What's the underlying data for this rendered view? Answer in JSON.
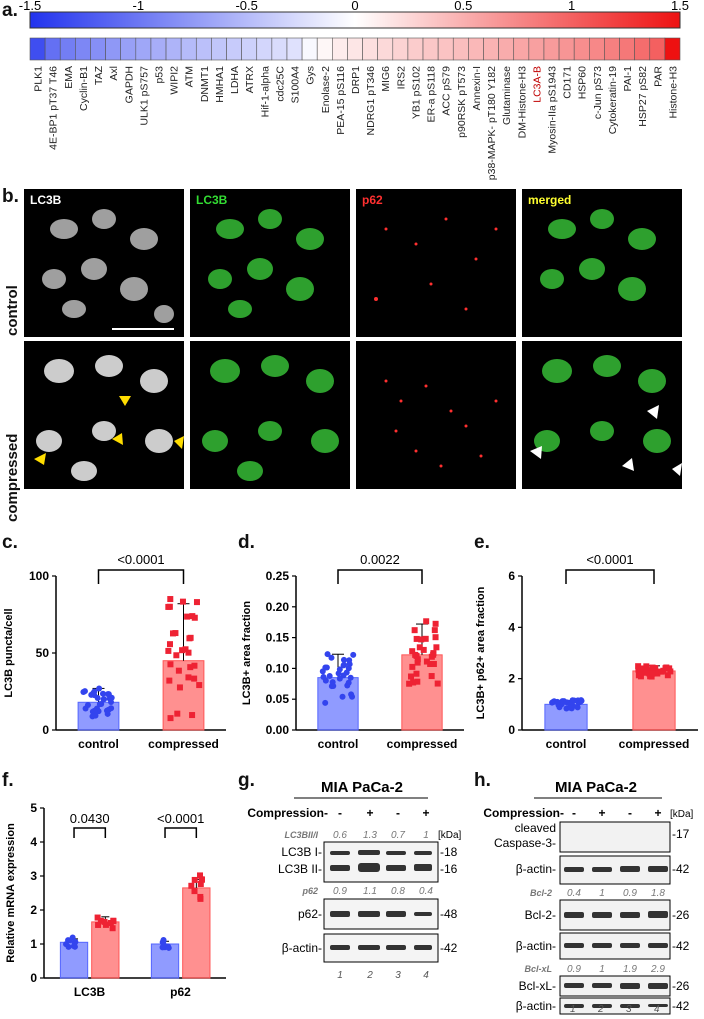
{
  "panels": {
    "a": "a.",
    "b": "b.",
    "c": "c.",
    "d": "d.",
    "e": "e.",
    "f": "f.",
    "g": "g.",
    "h": "h."
  },
  "heatmap": {
    "scale_ticks": [
      "-1.5",
      "-1",
      "-0.5",
      "0",
      "0.5",
      "1",
      "1.5"
    ],
    "scale_values": [
      -1.5,
      -1,
      -0.5,
      0,
      0.5,
      1,
      1.5
    ],
    "range": [
      -1.5,
      1.5
    ],
    "low_color": "#2233ee",
    "high_color": "#ee1111",
    "highlight_color": "#c00000",
    "proteins": [
      "PLK1",
      "4E-BP1 pT37 T46",
      "EMA",
      "Cyclin-B1",
      "TAZ",
      "Axl",
      "GAPDH",
      "ULK1 pS757",
      "p53",
      "WIPI2",
      "ATM",
      "DNMT1",
      "HMHA1",
      "LDHA",
      "ATRX",
      "Hif-1-alpha",
      "cdc25C",
      "S100A4",
      "Gys",
      "Enolase-2",
      "PEA-15 pS116",
      "DRP1",
      "NDRG1 pT346",
      "MIG6",
      "IRS2",
      "YB1 pS102",
      "ER-a pS118",
      "ACC pS79",
      "p90RSK pT573",
      "Annexin-I",
      "p38-MAPK- pT180 Y182",
      "Glutaminase",
      "DM-Histone-H3",
      "LC3A-B",
      "Myosin-IIa pS1943",
      "CD171",
      "HSP60",
      "c-Jun pS73",
      "Cytokeratin-19",
      "PAI-1",
      "HSP27 pS82",
      "PAR",
      "Histone-H3"
    ],
    "values": [
      -1.3,
      -1.05,
      -0.95,
      -0.88,
      -0.82,
      -0.76,
      -0.7,
      -0.65,
      -0.6,
      -0.55,
      -0.5,
      -0.46,
      -0.42,
      -0.38,
      -0.34,
      -0.3,
      -0.26,
      -0.22,
      -0.05,
      0.05,
      0.12,
      0.16,
      0.2,
      0.24,
      0.28,
      0.32,
      0.35,
      0.38,
      0.41,
      0.45,
      0.48,
      0.52,
      0.56,
      0.6,
      0.63,
      0.67,
      0.71,
      0.75,
      0.8,
      0.85,
      0.92,
      1.0,
      1.5
    ],
    "highlighted": [
      "LC3A-B"
    ]
  },
  "microscopy": {
    "col_labels": [
      "LC3B",
      "LC3B",
      "p62",
      "merged"
    ],
    "col_label_colors": [
      "#ffffff",
      "#33dd33",
      "#ff3030",
      "#ffff30"
    ],
    "row_labels": [
      "control",
      "compressed"
    ]
  },
  "chart_data": [
    {
      "type": "bar",
      "panel": "c",
      "categories": [
        "control",
        "compressed"
      ],
      "values": [
        18,
        45
      ],
      "errors": [
        9,
        37
      ],
      "ylabel": "LC3B puncta/cell",
      "ylim": [
        0,
        100
      ],
      "yticks": [
        "0",
        "50",
        "100"
      ],
      "significance": "<0.0001",
      "colors": [
        "#5566ff",
        "#ff5555"
      ]
    },
    {
      "type": "bar",
      "panel": "d",
      "categories": [
        "control",
        "compressed"
      ],
      "values": [
        0.085,
        0.122
      ],
      "errors": [
        0.038,
        0.05
      ],
      "ylabel": "LC3B+ area fraction",
      "ylim": [
        0,
        0.25
      ],
      "yticks": [
        "0.00",
        "0.05",
        "0.10",
        "0.15",
        "0.20",
        "0.25"
      ],
      "significance": "0.0022",
      "colors": [
        "#5566ff",
        "#ff5555"
      ]
    },
    {
      "type": "bar",
      "panel": "e",
      "categories": [
        "control",
        "compressed"
      ],
      "values": [
        1.0,
        2.3
      ],
      "errors": [
        0.15,
        0.2
      ],
      "ylabel": "LC3B+ p62+ area fraction",
      "ylim": [
        0,
        6
      ],
      "yticks": [
        "0",
        "2",
        "4",
        "6"
      ],
      "significance": "<0.0001",
      "colors": [
        "#5566ff",
        "#ff5555"
      ]
    },
    {
      "type": "bar",
      "panel": "f",
      "categories": [
        "LC3B",
        "p62"
      ],
      "series": [
        {
          "values": [
            1.05,
            1.0
          ],
          "color": "#5566ff"
        },
        {
          "values": [
            1.65,
            2.65
          ],
          "color": "#ff5555"
        }
      ],
      "errors": [
        [
          0.1,
          0.08
        ],
        [
          0.15,
          0.25
        ]
      ],
      "ylabel": "Relative mRNA expression",
      "ylim": [
        0,
        5
      ],
      "yticks": [
        "0",
        "1",
        "2",
        "3",
        "4",
        "5"
      ],
      "significance": [
        "0.0430",
        "<0.0001"
      ]
    }
  ],
  "blot_g": {
    "title": "MIA PaCa-2",
    "compression_label": "Compression-",
    "lanes": [
      "-",
      "+",
      "-",
      "+"
    ],
    "kda_label": "[kDa]",
    "ratio1_label": "LC3BII/I",
    "ratio1": [
      "0.6",
      "1.3",
      "0.7",
      "1"
    ],
    "ratio2_label": "p62",
    "ratio2": [
      "0.9",
      "1.1",
      "0.8",
      "0.4"
    ],
    "bands": [
      "LC3B I-",
      "LC3B II-",
      "p62-",
      "β-actin-"
    ],
    "kda": [
      "-18",
      "-16",
      "-48",
      "-42"
    ],
    "lane_numbers": [
      "1",
      "2",
      "3",
      "4"
    ]
  },
  "blot_h": {
    "title": "MIA PaCa-2",
    "compression_label": "Compression-",
    "lanes": [
      "-",
      "+",
      "-",
      "+"
    ],
    "kda_label": "[kDa]",
    "cleaved": "cleaved",
    "caspase": "Caspase-3-",
    "bcl2_ratio_label": "Bcl-2",
    "bcl2_ratio": [
      "0.4",
      "1",
      "0.9",
      "1.8"
    ],
    "bclxl_ratio_label": "Bcl-xL",
    "bclxl_ratio": [
      "0.9",
      "1",
      "1.9",
      "2.9"
    ],
    "actin": "β-actin-",
    "bcl2": "Bcl-2-",
    "bclxl": "Bcl-xL-",
    "kda": [
      "-17",
      "-42",
      "-26",
      "-42",
      "-26",
      "-42"
    ],
    "lane_numbers": [
      "1",
      "2",
      "3",
      "4"
    ]
  }
}
